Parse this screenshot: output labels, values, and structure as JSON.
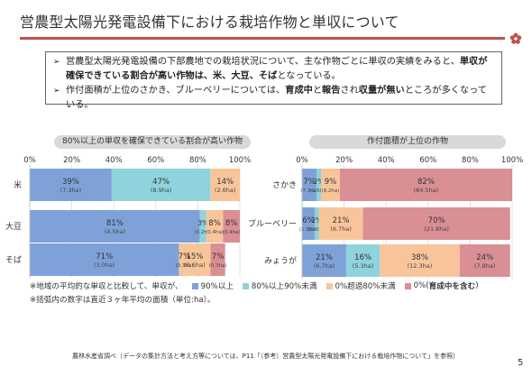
{
  "header": {
    "title": "営農型太陽光発電設備下における栽培作物と単収について"
  },
  "summary": {
    "bullet1": {
      "part1": "営農型太陽光発電設備の下部農地での栽培状況について、主な作物ごとに単収の実績をみると、",
      "bold1": "単収が確保できている割合が高い作物は、米、大豆、そば",
      "part2": "となっている。"
    },
    "bullet2": {
      "part1": "作付面積が上位のさかき、ブルーベリーについては、",
      "bold1": "育成中",
      "part2": "と",
      "bold2": "報告",
      "part3": "され",
      "bold3": "収量が無い",
      "part4": "ところが多くなっている。"
    }
  },
  "colors": {
    "s90": "#7ea2d8",
    "s80": "#8fd3dc",
    "s0": "#f8c59b",
    "s_zero": "#d98f93"
  },
  "chart_data": [
    {
      "type": "bar",
      "orientation": "horizontal-stacked-percent",
      "title": "80%以上の単収を確保できている割合が高い作物",
      "categories": [
        "米",
        "大豆",
        "そば"
      ],
      "xlim": [
        0,
        100
      ],
      "x_ticks": [
        "0%",
        "20%",
        "40%",
        "60%",
        "80%",
        "100%"
      ],
      "series": [
        {
          "name": "90%以上",
          "values": [
            39,
            81,
            71
          ],
          "labels": [
            "39%",
            "81%",
            "71%"
          ],
          "areas": [
            "(7.3ha)",
            "(4.5ha)",
            "(3.0ha)"
          ]
        },
        {
          "name": "80%以上90%未満",
          "values": [
            47,
            3,
            0
          ],
          "labels": [
            "47%",
            "3%",
            ""
          ],
          "areas": [
            "(8.9ha)",
            "(0.2ha)",
            ""
          ]
        },
        {
          "name": "0%超過80%未満",
          "values": [
            14,
            8,
            15
          ],
          "labels": [
            "14%",
            "8%",
            "15%"
          ],
          "areas": [
            "(2.6ha)",
            "(0.4ha)",
            "(0.6ha)"
          ]
        },
        {
          "name": "0%(育成中を含む)",
          "values": [
            0,
            8,
            7
          ],
          "labels": [
            "",
            "8%",
            "7%"
          ],
          "areas": [
            "",
            "(0.4ha)",
            "(0.3ha)"
          ]
        }
      ],
      "extra_labels": [
        {
          "category": "そば",
          "label": "7%",
          "area": "(0.3ha)",
          "note": "small segment between 90% and 0%超過 bands"
        }
      ]
    },
    {
      "type": "bar",
      "orientation": "horizontal-stacked-percent",
      "title": "作付面積が上位の作物",
      "categories": [
        "さかき",
        "ブルーベリー",
        "みょうが"
      ],
      "xlim": [
        0,
        100
      ],
      "x_ticks": [
        "0%",
        "20%",
        "40%",
        "60%",
        "80%",
        "100%"
      ],
      "series": [
        {
          "name": "90%以上",
          "values": [
            7,
            6,
            21
          ],
          "labels": [
            "7%",
            "6%",
            "21%"
          ],
          "areas": [
            "(7.3ha)",
            "(1.9ha)",
            "(6.7ha)"
          ]
        },
        {
          "name": "80%以上90%未満",
          "values": [
            2,
            2,
            16
          ],
          "labels": [
            "2%",
            "2%",
            "16%"
          ],
          "areas": [
            "(2.5ha)",
            "(0.6ha)",
            "(5.3ha)"
          ]
        },
        {
          "name": "0%超過80%未満",
          "values": [
            9,
            21,
            38
          ],
          "labels": [
            "9%",
            "21%",
            "38%"
          ],
          "areas": [
            "(9.2ha)",
            "(6.7ha)",
            "(12.3ha)"
          ]
        },
        {
          "name": "0%(育成中を含む)",
          "values": [
            82,
            70,
            24
          ],
          "labels": [
            "82%",
            "70%",
            "24%"
          ],
          "areas": [
            "(84.5ha)",
            "(21.8ha)",
            "(7.8ha)"
          ]
        }
      ]
    }
  ],
  "notes": {
    "note1_prefix": "※地域の平均的な単収と比較して、単収が、",
    "legend": [
      "90%以上",
      "80%以上90%未満",
      "0%超過80%未満",
      "0%("
    ],
    "legend_bold": "育成中を含む",
    "legend_suffix": ")",
    "note2": "※括弧内の数字は直近３ヶ年平均の面積（単位:ha）。"
  },
  "footer": {
    "source": "農林水産省調べ（データの集計方法と考え方等については、P11「（参考）営農型太陽光発電設備下における栽培作物について」を参照）",
    "page": "5"
  }
}
